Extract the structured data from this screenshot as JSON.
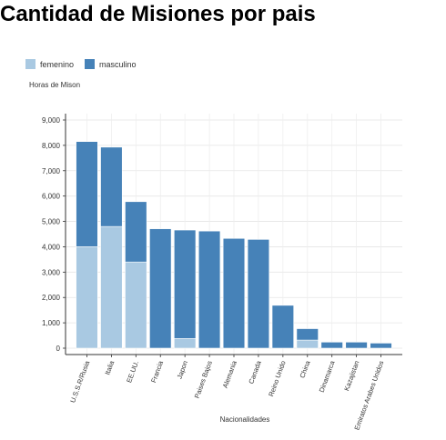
{
  "title": "Cantidad de Misiones por pais",
  "legend": {
    "items": [
      {
        "name": "femenino",
        "color": "#a9c9e2"
      },
      {
        "name": "masculino",
        "color": "#4682b8"
      }
    ]
  },
  "chart_data": {
    "type": "bar",
    "stacked": true,
    "title": "Cantidad de Misiones por pais",
    "xlabel": "Nacionalidades",
    "ylabel": "Horas de Mison",
    "ylim": [
      0,
      9300
    ],
    "yticks": [
      0,
      1000,
      2000,
      3000,
      4000,
      5000,
      6000,
      7000,
      8000,
      9000
    ],
    "ytick_labels": [
      "0",
      "1,000",
      "2,000",
      "3,000",
      "4,000",
      "5,000",
      "6,000",
      "7,000",
      "8,000",
      "9,000"
    ],
    "grid": true,
    "legend_position": "top-left",
    "categories": [
      "U.S.S.R/Rusia",
      "Italia",
      "EE.UU.",
      "Francia",
      "Japon",
      "Paises Bajos",
      "Alemania",
      "Canada",
      "Reino Unido",
      "China",
      "Dinamarca",
      "Kazajistan",
      "Emiratos Arabes Unidos"
    ],
    "series": [
      {
        "name": "femenino",
        "color": "#a9c9e2",
        "values": [
          4000,
          4800,
          3400,
          0,
          380,
          0,
          0,
          0,
          0,
          320,
          0,
          0,
          0
        ]
      },
      {
        "name": "masculino",
        "color": "#4682b8",
        "values": [
          4150,
          3130,
          2380,
          4710,
          4280,
          4620,
          4330,
          4290,
          1690,
          450,
          240,
          240,
          200
        ]
      }
    ]
  }
}
